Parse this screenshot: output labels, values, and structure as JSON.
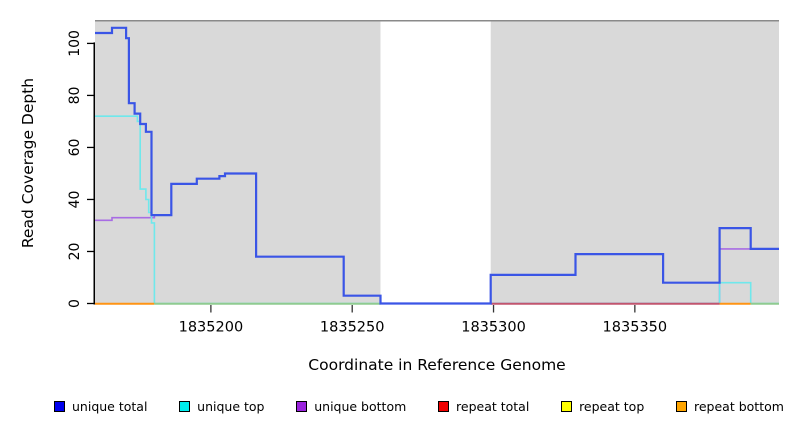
{
  "figure": {
    "background": "#FFFFFF",
    "panel_background": "#D9D9D9",
    "panel_top_border_color": "#8A8A8A",
    "tick_color": "#333333"
  },
  "chart_data": {
    "type": "line",
    "subtype": "step-after",
    "title": "",
    "xlabel": "Coordinate in Reference Genome",
    "ylabel": "Read Coverage Depth",
    "xlim": [
      1835159,
      1835401
    ],
    "ylim": [
      0,
      109
    ],
    "x_ticks": [
      1835200,
      1835250,
      1835300,
      1835350
    ],
    "y_ticks": [
      0,
      20,
      40,
      60,
      80,
      100
    ],
    "y_tick_labels_rotated": true,
    "grid": "off",
    "legend_position": "bottom",
    "masked_region": {
      "start": 1835260,
      "end": 1835299,
      "color": "#FFFFFF"
    },
    "series": [
      {
        "name": "unique total",
        "color": "#3A55E6",
        "legend_color": "#0000EE",
        "width": 2.2,
        "steps": [
          [
            1835159,
            104
          ],
          [
            1835165,
            106
          ],
          [
            1835170,
            102
          ],
          [
            1835171,
            77
          ],
          [
            1835173,
            73
          ],
          [
            1835175,
            69
          ],
          [
            1835177,
            66
          ],
          [
            1835179,
            34
          ],
          [
            1835186,
            46
          ],
          [
            1835195,
            48
          ],
          [
            1835203,
            49
          ],
          [
            1835205,
            50
          ],
          [
            1835216,
            18
          ],
          [
            1835247,
            3
          ],
          [
            1835260,
            0
          ],
          [
            1835299,
            11
          ],
          [
            1835329,
            19
          ],
          [
            1835360,
            8
          ],
          [
            1835380,
            29
          ],
          [
            1835391,
            21
          ]
        ]
      },
      {
        "name": "unique top",
        "color": "#6FE8EC",
        "legend_color": "#00EEEE",
        "width": 1.6,
        "steps": [
          [
            1835159,
            72
          ],
          [
            1835174,
            70
          ],
          [
            1835175,
            44
          ],
          [
            1835177,
            40
          ],
          [
            1835178,
            35
          ],
          [
            1835179,
            31
          ],
          [
            1835180,
            0
          ],
          [
            1835380,
            8
          ],
          [
            1835391,
            0
          ]
        ]
      },
      {
        "name": "unique bottom",
        "color": "#A86CE4",
        "legend_color": "#9A23DD",
        "width": 1.6,
        "steps": [
          [
            1835159,
            32
          ],
          [
            1835165,
            33
          ],
          [
            1835180,
            34
          ],
          [
            1835186,
            46
          ],
          [
            1835195,
            48
          ],
          [
            1835203,
            49
          ],
          [
            1835205,
            50
          ],
          [
            1835216,
            18
          ],
          [
            1835247,
            3
          ],
          [
            1835260,
            0
          ],
          [
            1835380,
            21
          ]
        ]
      },
      {
        "name": "repeat total",
        "color": "#C2556E",
        "legend_color": "#EE0000",
        "width": 1.8,
        "skip_path": true,
        "steps": [
          [
            1835159,
            0
          ]
        ]
      },
      {
        "name": "repeat top",
        "color": "#FFFF00",
        "legend_color": "#FFFF00",
        "width": 1.8,
        "skip_path": true,
        "steps": [
          [
            1835159,
            0
          ]
        ]
      },
      {
        "name": "repeat bottom",
        "color": "#FF9414",
        "legend_color": "#FFA500",
        "width": 1.8,
        "skip_path": true,
        "steps": [
          [
            1835159,
            0
          ]
        ]
      }
    ],
    "baseline_segments": [
      {
        "x1": 1835159,
        "x2": 1835180,
        "color": "#FF9414"
      },
      {
        "x1": 1835180,
        "x2": 1835260,
        "color": "#8FCB90"
      },
      {
        "x1": 1835299,
        "x2": 1835380,
        "color": "#C2556E"
      },
      {
        "x1": 1835380,
        "x2": 1835391,
        "color": "#FF9414"
      },
      {
        "x1": 1835391,
        "x2": 1835401,
        "color": "#8FCB90"
      }
    ]
  },
  "legend": {
    "items": [
      {
        "label": "unique total",
        "color": "#0000EE"
      },
      {
        "label": "unique top",
        "color": "#00EEEE"
      },
      {
        "label": "unique bottom",
        "color": "#9A23DD"
      },
      {
        "label": "repeat total",
        "color": "#EE0000"
      },
      {
        "label": "repeat top",
        "color": "#FFFF00"
      },
      {
        "label": "repeat bottom",
        "color": "#FFA500"
      }
    ]
  }
}
